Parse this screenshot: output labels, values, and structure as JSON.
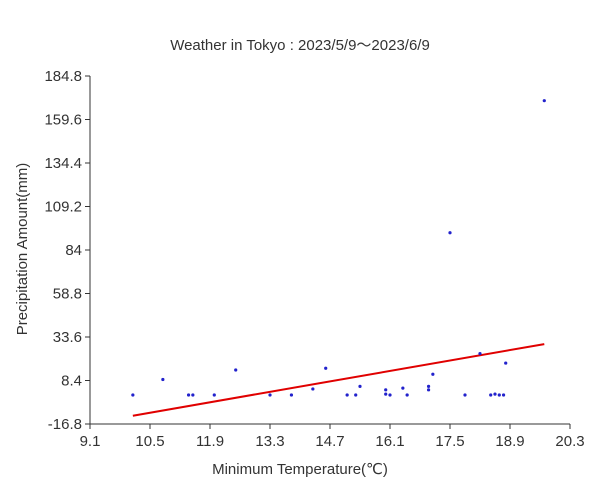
{
  "chart_data": {
    "type": "scatter",
    "title": "Weather in Tokyo : 2023/5/9～2023/6/9",
    "xlabel": "Minimum Temperature(℃)",
    "ylabel": "Precipitation Amount(mm)",
    "xlim": [
      9.1,
      20.3
    ],
    "ylim": [
      -16.8,
      184.8
    ],
    "xticks": [
      "9.1",
      "10.5",
      "11.9",
      "13.3",
      "14.7",
      "16.1",
      "17.5",
      "18.9",
      "20.3"
    ],
    "yticks": [
      "-16.8",
      "8.4",
      "33.6",
      "58.8",
      "84",
      "109.2",
      "134.4",
      "159.6",
      "184.8"
    ],
    "grid": false,
    "points": [
      {
        "x": 10.1,
        "y": 0.0
      },
      {
        "x": 10.8,
        "y": 9.0
      },
      {
        "x": 11.4,
        "y": 0.0
      },
      {
        "x": 11.5,
        "y": 0.0
      },
      {
        "x": 12.0,
        "y": 0.0
      },
      {
        "x": 12.5,
        "y": 14.5
      },
      {
        "x": 13.3,
        "y": 0.0
      },
      {
        "x": 13.8,
        "y": 0.0
      },
      {
        "x": 14.3,
        "y": 3.5
      },
      {
        "x": 14.6,
        "y": 15.5
      },
      {
        "x": 15.1,
        "y": 0.0
      },
      {
        "x": 15.3,
        "y": 0.0
      },
      {
        "x": 15.4,
        "y": 5.0
      },
      {
        "x": 16.0,
        "y": 3.0
      },
      {
        "x": 16.0,
        "y": 0.5
      },
      {
        "x": 16.1,
        "y": 0.0
      },
      {
        "x": 16.4,
        "y": 4.0
      },
      {
        "x": 16.5,
        "y": 0.0
      },
      {
        "x": 17.0,
        "y": 5.0
      },
      {
        "x": 17.0,
        "y": 3.0
      },
      {
        "x": 17.1,
        "y": 12.0
      },
      {
        "x": 17.5,
        "y": 94.0
      },
      {
        "x": 17.85,
        "y": 0.0
      },
      {
        "x": 18.2,
        "y": 24.0
      },
      {
        "x": 18.45,
        "y": 0.0
      },
      {
        "x": 18.55,
        "y": 0.5
      },
      {
        "x": 18.65,
        "y": 0.0
      },
      {
        "x": 18.75,
        "y": 0.0
      },
      {
        "x": 18.8,
        "y": 18.5
      },
      {
        "x": 19.7,
        "y": 170.5
      }
    ],
    "trendline": {
      "x": [
        10.1,
        19.7
      ],
      "y": [
        -12.0,
        29.5
      ]
    }
  }
}
